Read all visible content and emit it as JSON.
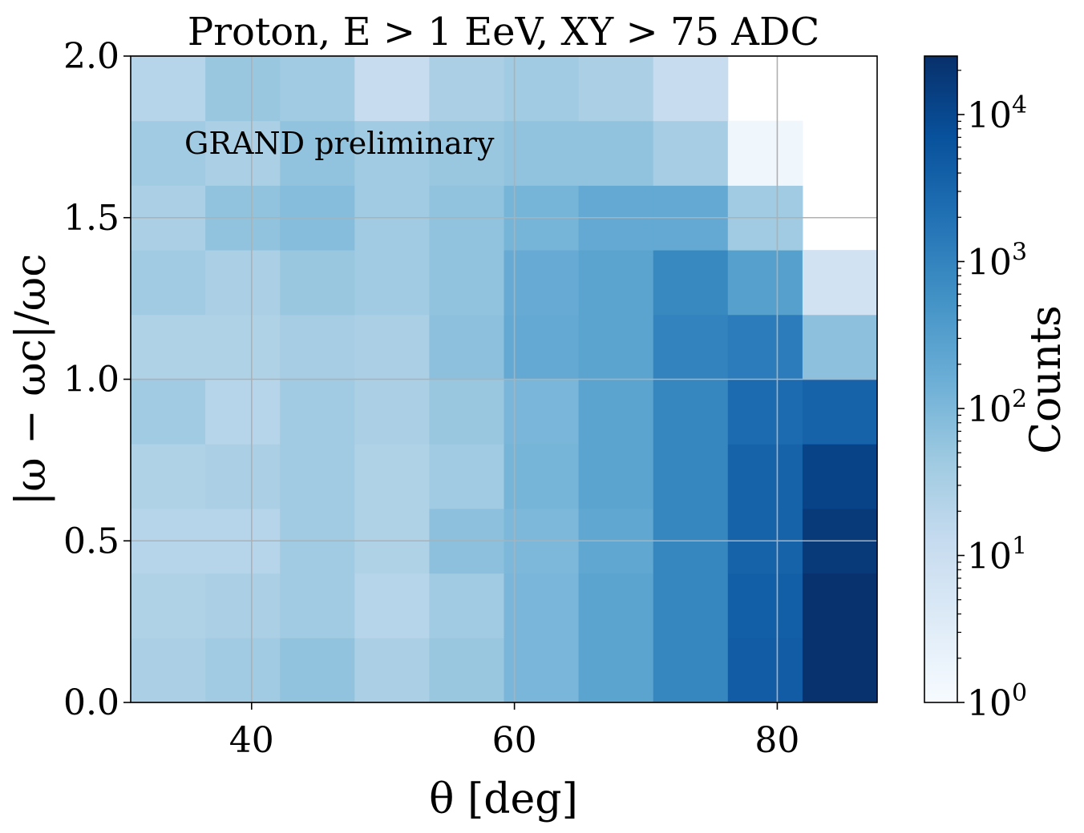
{
  "chart_data": {
    "type": "heatmap",
    "title": "Proton, E > 1 EeV, XY > 75 ADC",
    "xlabel": "θ [deg]",
    "ylabel": "|ω − ωc|/ωc",
    "xlim": [
      30.8,
      87.6
    ],
    "ylim": [
      0,
      2.0
    ],
    "x_edges": [
      30.8,
      36.48,
      42.16,
      47.84,
      53.52,
      59.2,
      64.88,
      70.56,
      76.24,
      81.92,
      87.6
    ],
    "y_edges": [
      0,
      0.2,
      0.4,
      0.6,
      0.8,
      1.0,
      1.2,
      1.4,
      1.6,
      1.8,
      2.0
    ],
    "x_ticks": [
      40,
      60,
      80
    ],
    "x_tick_labels": [
      "40",
      "60",
      "80"
    ],
    "y_ticks": [
      0,
      0.5,
      1.0,
      1.5,
      2.0
    ],
    "y_tick_labels": [
      "0.0",
      "0.5",
      "1.0",
      "1.5",
      "2.0"
    ],
    "grid": true,
    "annotation": "GRAND preliminary",
    "annotation_color": "#dc143c",
    "colormap": "Blues",
    "color_scale": "log",
    "colorbar": {
      "label": "Counts",
      "range": [
        1,
        25000
      ],
      "tick_values": [
        1,
        10,
        100,
        1000,
        10000
      ],
      "tick_bases": [
        "10",
        "10",
        "10",
        "10",
        "10"
      ],
      "tick_exponents": [
        "0",
        "1",
        "2",
        "3",
        "4"
      ]
    },
    "counts": [
      [
        30,
        40,
        60,
        30,
        50,
        110,
        250,
        900,
        4500,
        23000
      ],
      [
        25,
        30,
        40,
        20,
        40,
        110,
        250,
        900,
        4000,
        23000
      ],
      [
        20,
        20,
        40,
        25,
        70,
        100,
        220,
        900,
        3500,
        18000
      ],
      [
        25,
        30,
        40,
        25,
        40,
        120,
        250,
        900,
        3500,
        12000
      ],
      [
        40,
        20,
        40,
        30,
        50,
        110,
        250,
        900,
        2500,
        3500
      ],
      [
        25,
        25,
        35,
        30,
        70,
        200,
        250,
        1000,
        1300,
        70
      ],
      [
        40,
        30,
        50,
        40,
        60,
        180,
        250,
        800,
        300,
        7
      ],
      [
        30,
        60,
        80,
        40,
        60,
        120,
        200,
        200,
        40,
        null
      ],
      [
        40,
        30,
        60,
        40,
        50,
        60,
        60,
        35,
        1.5,
        null
      ],
      [
        20,
        50,
        40,
        12,
        30,
        40,
        30,
        12,
        null,
        null
      ]
    ]
  }
}
